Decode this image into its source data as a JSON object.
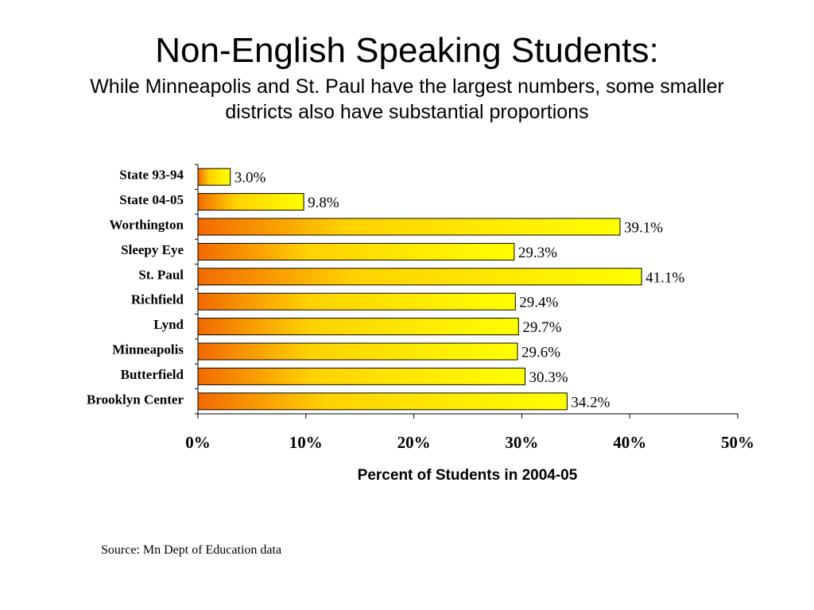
{
  "slide": {
    "title": "Non-English Speaking Students:",
    "subtitle": "While Minneapolis and St. Paul have the largest numbers, some smaller districts also have substantial proportions",
    "source": "Source: Mn Dept of Education data"
  },
  "colors": {
    "bar_gradient_start": "#f26a00",
    "bar_gradient_mid": "#ffd200",
    "bar_gradient_end": "#ffff00",
    "bar_stroke": "#000000",
    "axis": "#000000"
  },
  "chart_data": {
    "type": "bar",
    "orientation": "horizontal",
    "categories": [
      "State 93-94",
      "State 04-05",
      "Worthington",
      "Sleepy Eye",
      "St. Paul",
      "Richfield",
      "Lynd",
      "Minneapolis",
      "Butterfield",
      "Brooklyn Center"
    ],
    "values": [
      3.0,
      9.8,
      39.1,
      29.3,
      41.1,
      29.4,
      29.7,
      29.6,
      30.3,
      34.2
    ],
    "data_labels": [
      "3.0%",
      "9.8%",
      "39.1%",
      "29.3%",
      "41.1%",
      "29.4%",
      "29.7%",
      "29.6%",
      "30.3%",
      "34.2%"
    ],
    "xlabel": "Percent of Students in 2004-05",
    "ylabel": "",
    "xlim": [
      0,
      50
    ],
    "x_ticks": [
      0,
      10,
      20,
      30,
      40,
      50
    ],
    "x_tick_labels": [
      "0%",
      "10%",
      "20%",
      "30%",
      "40%",
      "50%"
    ],
    "grid": false,
    "legend": "none"
  }
}
